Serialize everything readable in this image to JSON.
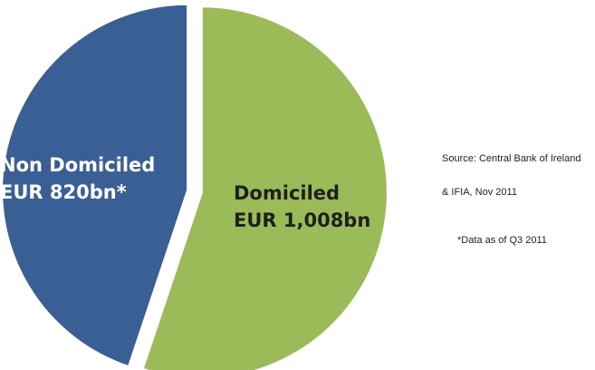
{
  "chart_data": {
    "type": "pie",
    "title": "",
    "categories": [
      "Non Domiciled",
      "Domiciled"
    ],
    "values": [
      820,
      1008
    ],
    "unit": "EUR bn",
    "slices": [
      {
        "name": "Non Domiciled",
        "value": 820,
        "label_line1": "Non Domiciled",
        "label_line2": "EUR 820bn*",
        "color": "#3a5f94"
      },
      {
        "name": "Domiciled",
        "value": 1008,
        "label_line1": "Domiciled",
        "label_line2": "EUR 1,008bn",
        "color": "#9bbb59"
      }
    ],
    "start_angle_deg": 0,
    "exploded": true,
    "legend": "none"
  },
  "notes": {
    "source_line1": "Source: Central Bank of Ireland",
    "source_line2": "& IFIA, Nov  2011",
    "footnote": "*Data as of Q3 2011"
  }
}
